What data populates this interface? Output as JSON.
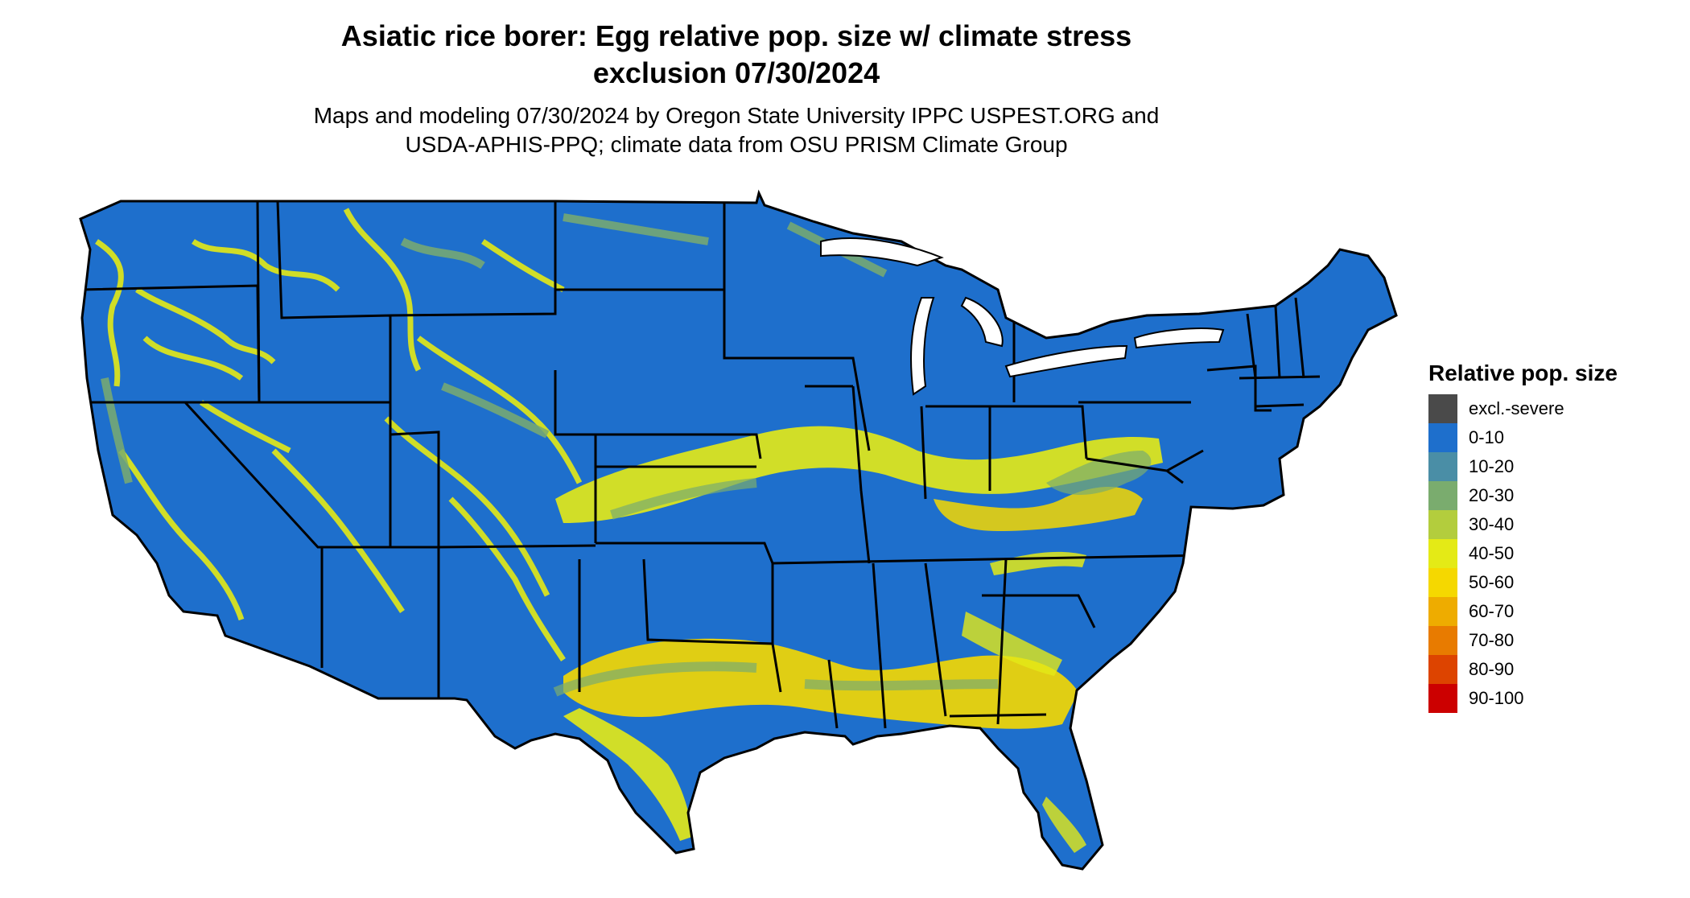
{
  "header": {
    "title_line1": "Asiatic rice borer: Egg relative pop. size w/ climate stress",
    "title_line2": "exclusion 07/30/2024",
    "subtitle_line1": "Maps and modeling 07/30/2024 by Oregon State University IPPC USPEST.ORG and",
    "subtitle_line2": "USDA-APHIS-PPQ; climate data from OSU PRISM Climate Group"
  },
  "legend": {
    "title": "Relative pop. size",
    "items": [
      {
        "label": "excl.-severe",
        "color": "#4a4a4a"
      },
      {
        "label": "0-10",
        "color": "#1e6fcc"
      },
      {
        "label": "10-20",
        "color": "#4a8ea6"
      },
      {
        "label": "20-30",
        "color": "#7aac6e"
      },
      {
        "label": "30-40",
        "color": "#b3cd3d"
      },
      {
        "label": "40-50",
        "color": "#e4ea16"
      },
      {
        "label": "50-60",
        "color": "#f5d800"
      },
      {
        "label": "60-70",
        "color": "#eeac00"
      },
      {
        "label": "70-80",
        "color": "#e87b00"
      },
      {
        "label": "80-90",
        "color": "#dd4400"
      },
      {
        "label": "90-100",
        "color": "#cc0000"
      }
    ]
  },
  "map": {
    "region": "contiguous-united-states",
    "base_color": "#1e6fcc",
    "border_color": "#000000",
    "dominant_classes": [
      "0-10",
      "20-30",
      "40-50",
      "50-60"
    ]
  }
}
